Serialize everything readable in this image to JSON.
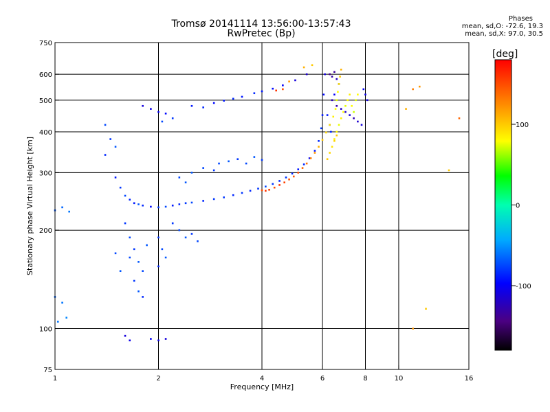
{
  "header": {
    "title_line1": "Tromsø 20141114 13:56:00-13:57:43",
    "title_line2": "RwPretec (Bp)"
  },
  "phase_stats": {
    "heading": "Phases",
    "line_o": "mean, sd,O: -72.6, 19.3",
    "line_x": "mean, sd,X:  97.0, 30.5"
  },
  "colorbar": {
    "unit_label": "[deg]",
    "ticks": [
      {
        "label": "100",
        "value": 100
      },
      {
        "label": "0",
        "value": 0
      },
      {
        "label": "-100",
        "value": -100
      }
    ],
    "range": [
      -180,
      180
    ]
  },
  "chart_data": {
    "type": "scatter",
    "title": "Tromsø 20141114 13:56:00-13:57:43",
    "subtitle": "RwPretec (Bp)",
    "xlabel": "Frequency [MHz]",
    "ylabel": "Stationary phase Virtual Height [km]",
    "x_scale": "log",
    "y_scale": "log",
    "xlim": [
      1,
      16
    ],
    "ylim": [
      75,
      750
    ],
    "x_ticks": [
      {
        "label": "1",
        "value": 1
      },
      {
        "label": "2",
        "value": 2
      },
      {
        "label": "4",
        "value": 4
      },
      {
        "label": "6",
        "value": 6
      },
      {
        "label": "8",
        "value": 8
      },
      {
        "label": "10",
        "value": 10
      },
      {
        "label": "16",
        "value": 16
      }
    ],
    "y_ticks": [
      {
        "label": "75",
        "value": 75
      },
      {
        "label": "100",
        "value": 100
      },
      {
        "label": "200",
        "value": 200
      },
      {
        "label": "300",
        "value": 300
      },
      {
        "label": "400",
        "value": 400
      },
      {
        "label": "500",
        "value": 500
      },
      {
        "label": "600",
        "value": 600
      },
      {
        "label": "750",
        "value": 750
      }
    ],
    "x_grid": [
      2,
      4,
      6,
      8,
      10
    ],
    "y_grid": [
      100,
      200,
      300,
      400,
      500,
      600
    ],
    "color_scale": "phase [deg], -180 black/purple to +180 red",
    "series": [
      {
        "points": [
          [
            1.5,
            290,
            -90
          ],
          [
            1.55,
            270,
            -80
          ],
          [
            1.6,
            255,
            -75
          ],
          [
            1.65,
            248,
            -85
          ],
          [
            1.7,
            242,
            -90
          ],
          [
            1.75,
            240,
            -70
          ],
          [
            1.8,
            238,
            -85
          ],
          [
            1.9,
            236,
            -95
          ],
          [
            2.0,
            235,
            -80
          ],
          [
            2.1,
            236,
            -75
          ],
          [
            2.2,
            238,
            -90
          ],
          [
            2.3,
            240,
            -85
          ],
          [
            2.4,
            242,
            -80
          ],
          [
            2.5,
            243,
            -75
          ],
          [
            2.7,
            246,
            -85
          ],
          [
            2.9,
            249,
            -80
          ],
          [
            3.1,
            252,
            -80
          ],
          [
            3.3,
            256,
            -85
          ],
          [
            3.5,
            260,
            -80
          ],
          [
            3.7,
            264,
            -85
          ],
          [
            3.9,
            268,
            -80
          ],
          [
            4.1,
            272,
            -75
          ],
          [
            4.3,
            277,
            -80
          ],
          [
            4.5,
            283,
            -85
          ],
          [
            4.7,
            290,
            -80
          ],
          [
            4.9,
            298,
            -85
          ],
          [
            5.1,
            307,
            -90
          ],
          [
            5.3,
            318,
            -85
          ],
          [
            5.5,
            332,
            -95
          ],
          [
            5.7,
            350,
            -90
          ],
          [
            5.85,
            375,
            -85
          ],
          [
            5.95,
            410,
            -80
          ],
          [
            6.0,
            450,
            -90
          ],
          [
            6.05,
            520,
            -95
          ],
          [
            6.1,
            600,
            -110
          ],
          [
            1.6,
            210,
            -80
          ],
          [
            1.65,
            190,
            -75
          ],
          [
            1.7,
            175,
            -80
          ],
          [
            1.75,
            160,
            -70
          ],
          [
            1.8,
            150,
            -75
          ],
          [
            1.7,
            140,
            -80
          ],
          [
            1.75,
            130,
            -70
          ],
          [
            1.8,
            125,
            -85
          ],
          [
            1.65,
            165,
            -75
          ],
          [
            1.85,
            180,
            -70
          ],
          [
            2.0,
            190,
            -80
          ],
          [
            2.05,
            175,
            -75
          ],
          [
            2.1,
            165,
            -70
          ],
          [
            2.0,
            155,
            -85
          ],
          [
            1.55,
            150,
            -70
          ],
          [
            1.5,
            170,
            -75
          ],
          [
            1.4,
            420,
            -75
          ],
          [
            1.45,
            380,
            -80
          ],
          [
            1.5,
            360,
            -70
          ],
          [
            1.4,
            340,
            -85
          ],
          [
            1.8,
            480,
            -110
          ],
          [
            1.9,
            470,
            -105
          ],
          [
            2.0,
            460,
            -100
          ],
          [
            2.1,
            455,
            -95
          ],
          [
            2.2,
            440,
            -80
          ],
          [
            2.05,
            430,
            -75
          ],
          [
            2.5,
            480,
            -90
          ],
          [
            2.7,
            475,
            -85
          ],
          [
            2.9,
            490,
            -95
          ],
          [
            3.1,
            498,
            -90
          ],
          [
            3.3,
            505,
            -85
          ],
          [
            3.5,
            512,
            -90
          ],
          [
            3.8,
            525,
            -85
          ],
          [
            4.0,
            532,
            -90
          ],
          [
            4.3,
            542,
            -95
          ],
          [
            4.6,
            555,
            -100
          ],
          [
            5.0,
            575,
            -110
          ],
          [
            5.4,
            600,
            -115
          ],
          [
            3.0,
            320,
            -75
          ],
          [
            3.2,
            325,
            -70
          ],
          [
            3.4,
            330,
            -80
          ],
          [
            3.6,
            320,
            -75
          ],
          [
            3.8,
            335,
            -70
          ],
          [
            4.0,
            328,
            -80
          ],
          [
            2.5,
            300,
            -70
          ],
          [
            2.7,
            310,
            -75
          ],
          [
            2.9,
            305,
            -80
          ],
          [
            2.3,
            290,
            -75
          ],
          [
            2.4,
            280,
            -70
          ],
          [
            1.0,
            230,
            -70
          ],
          [
            1.05,
            235,
            -65
          ],
          [
            1.1,
            228,
            -60
          ],
          [
            1.0,
            125,
            -65
          ],
          [
            1.05,
            120,
            -60
          ],
          [
            1.02,
            105,
            -60
          ],
          [
            1.08,
            108,
            -55
          ],
          [
            1.6,
            95,
            -110
          ],
          [
            1.65,
            92,
            -105
          ],
          [
            1.9,
            93,
            -100
          ],
          [
            2.0,
            92,
            -105
          ],
          [
            2.1,
            93,
            -110
          ],
          [
            2.2,
            210,
            -80
          ],
          [
            2.3,
            200,
            -75
          ],
          [
            2.4,
            190,
            -70
          ],
          [
            2.5,
            195,
            -80
          ],
          [
            2.6,
            185,
            -75
          ],
          [
            6.3,
            600,
            -140
          ],
          [
            6.4,
            590,
            -130
          ],
          [
            6.5,
            610,
            -135
          ],
          [
            6.6,
            580,
            -120
          ],
          [
            6.7,
            560,
            -110
          ],
          [
            6.5,
            520,
            -100
          ],
          [
            6.4,
            500,
            -125
          ],
          [
            6.6,
            480,
            -130
          ],
          [
            6.8,
            470,
            -120
          ],
          [
            7.0,
            460,
            -115
          ],
          [
            7.2,
            450,
            -110
          ],
          [
            7.4,
            440,
            -125
          ],
          [
            7.6,
            430,
            -115
          ],
          [
            7.8,
            420,
            -110
          ],
          [
            8.0,
            520,
            -105
          ],
          [
            8.1,
            500,
            -110
          ],
          [
            7.9,
            540,
            -100
          ],
          [
            6.2,
            450,
            -90
          ],
          [
            6.3,
            420,
            -95
          ],
          [
            6.35,
            400,
            -85
          ]
        ]
      },
      {
        "points": [
          [
            4.0,
            265,
            150
          ],
          [
            4.1,
            264,
            160
          ],
          [
            4.2,
            266,
            155
          ],
          [
            4.35,
            270,
            150
          ],
          [
            4.5,
            275,
            160
          ],
          [
            4.65,
            280,
            155
          ],
          [
            4.8,
            286,
            150
          ],
          [
            4.95,
            292,
            145
          ],
          [
            5.1,
            300,
            150
          ],
          [
            5.25,
            310,
            140
          ],
          [
            5.4,
            320,
            135
          ],
          [
            5.55,
            332,
            130
          ],
          [
            5.7,
            345,
            120
          ],
          [
            5.85,
            360,
            110
          ],
          [
            6.0,
            378,
            100
          ],
          [
            6.15,
            398,
            95
          ],
          [
            6.3,
            420,
            90
          ],
          [
            6.45,
            445,
            85
          ],
          [
            6.55,
            470,
            80
          ],
          [
            6.6,
            500,
            75
          ],
          [
            6.65,
            530,
            80
          ],
          [
            6.7,
            560,
            90
          ],
          [
            6.75,
            590,
            100
          ],
          [
            6.8,
            620,
            110
          ],
          [
            6.5,
            380,
            85
          ],
          [
            6.6,
            400,
            80
          ],
          [
            6.7,
            420,
            75
          ],
          [
            6.8,
            440,
            85
          ],
          [
            6.9,
            460,
            80
          ],
          [
            7.0,
            480,
            75
          ],
          [
            7.1,
            500,
            80
          ],
          [
            7.2,
            520,
            85
          ],
          [
            7.3,
            480,
            80
          ],
          [
            7.4,
            460,
            70
          ],
          [
            7.5,
            500,
            75
          ],
          [
            7.6,
            520,
            80
          ],
          [
            6.2,
            330,
            100
          ],
          [
            6.3,
            345,
            95
          ],
          [
            6.4,
            360,
            90
          ],
          [
            6.5,
            375,
            95
          ],
          [
            6.6,
            390,
            100
          ],
          [
            4.6,
            540,
            150
          ],
          [
            4.4,
            535,
            160
          ],
          [
            4.8,
            570,
            120
          ],
          [
            5.3,
            630,
            110
          ],
          [
            5.6,
            640,
            100
          ],
          [
            11.0,
            540,
            130
          ],
          [
            11.5,
            550,
            120
          ],
          [
            10.5,
            470,
            110
          ],
          [
            15.0,
            440,
            140
          ],
          [
            14.0,
            305,
            100
          ],
          [
            12.0,
            115,
            100
          ],
          [
            11.0,
            100,
            120
          ]
        ]
      }
    ]
  }
}
